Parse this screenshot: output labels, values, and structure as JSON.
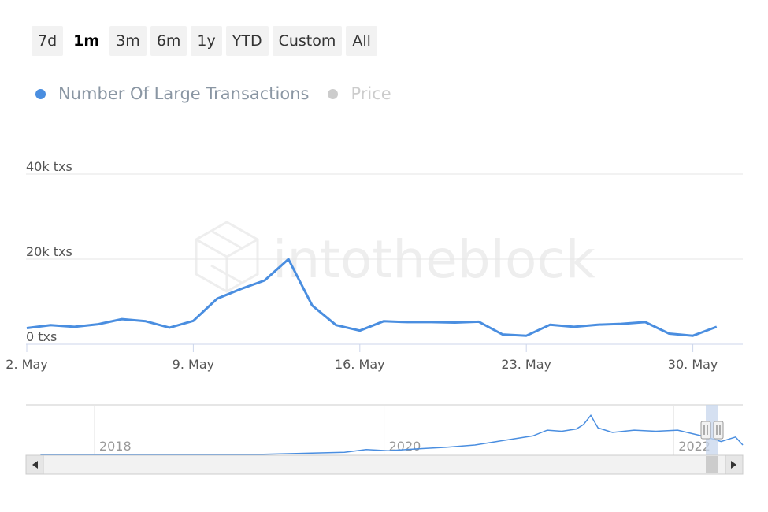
{
  "range_selector": {
    "buttons": [
      "7d",
      "1m",
      "3m",
      "6m",
      "1y",
      "YTD",
      "Custom",
      "All"
    ],
    "active": "1m"
  },
  "legend": [
    {
      "label": "Number Of Large Transactions",
      "color": "#4a8ee0",
      "visible": true
    },
    {
      "label": "Price",
      "color": "#cccccc",
      "visible": false
    }
  ],
  "watermark": "intotheblock",
  "chart_data": {
    "type": "line",
    "series": [
      {
        "name": "Number Of Large Transactions",
        "color": "#4a8ee0",
        "x": [
          "2022-05-02",
          "2022-05-03",
          "2022-05-04",
          "2022-05-05",
          "2022-05-06",
          "2022-05-07",
          "2022-05-08",
          "2022-05-09",
          "2022-05-10",
          "2022-05-11",
          "2022-05-12",
          "2022-05-13",
          "2022-05-14",
          "2022-05-15",
          "2022-05-16",
          "2022-05-17",
          "2022-05-18",
          "2022-05-19",
          "2022-05-20",
          "2022-05-21",
          "2022-05-22",
          "2022-05-23",
          "2022-05-24",
          "2022-05-25",
          "2022-05-26",
          "2022-05-27",
          "2022-05-28",
          "2022-05-29",
          "2022-05-30",
          "2022-05-31"
        ],
        "values": [
          3800,
          4500,
          4100,
          4700,
          5900,
          5400,
          3900,
          5500,
          10700,
          13000,
          15000,
          20000,
          9100,
          4500,
          3200,
          5400,
          5200,
          5200,
          5100,
          5300,
          2300,
          2000,
          4600,
          4100,
          4600,
          4800,
          5200,
          2500,
          2000,
          4100
        ]
      }
    ],
    "x_ticks": [
      "2. May",
      "9. May",
      "16. May",
      "23. May",
      "30. May"
    ],
    "y_ticks": [
      "0 txs",
      "20k txs",
      "40k txs"
    ],
    "ylim": [
      0,
      40000
    ],
    "navigator": {
      "tick_labels": [
        "2018",
        "2020",
        "2022"
      ],
      "x_range": [
        2017.5,
        2022.45
      ],
      "y_max": 20000,
      "points": [
        [
          2017.6,
          100
        ],
        [
          2018.5,
          100
        ],
        [
          2019.0,
          200
        ],
        [
          2019.25,
          600
        ],
        [
          2019.5,
          1000
        ],
        [
          2019.7,
          1300
        ],
        [
          2019.85,
          2500
        ],
        [
          2020.0,
          2000
        ],
        [
          2020.2,
          2800
        ],
        [
          2020.4,
          3500
        ],
        [
          2020.6,
          4500
        ],
        [
          2020.75,
          6000
        ],
        [
          2020.9,
          7500
        ],
        [
          2021.0,
          8500
        ],
        [
          2021.1,
          11000
        ],
        [
          2021.2,
          10500
        ],
        [
          2021.3,
          11500
        ],
        [
          2021.35,
          13500
        ],
        [
          2021.4,
          17500
        ],
        [
          2021.45,
          12000
        ],
        [
          2021.55,
          10000
        ],
        [
          2021.7,
          11000
        ],
        [
          2021.85,
          10500
        ],
        [
          2022.0,
          11000
        ],
        [
          2022.1,
          9500
        ],
        [
          2022.2,
          8000
        ],
        [
          2022.3,
          6000
        ],
        [
          2022.35,
          7000
        ],
        [
          2022.4,
          8000
        ],
        [
          2022.45,
          4500
        ]
      ]
    }
  }
}
